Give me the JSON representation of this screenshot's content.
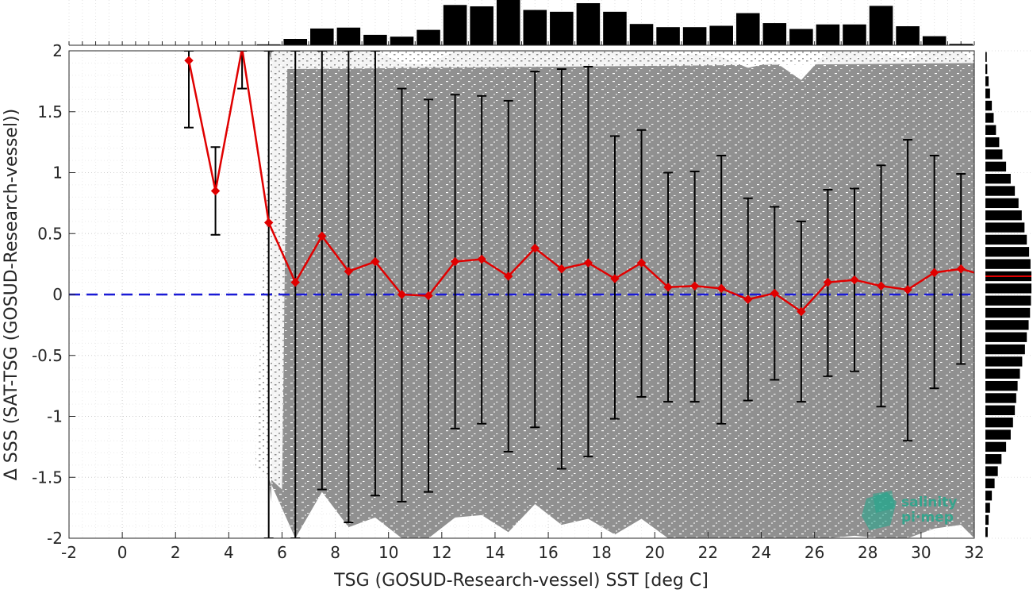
{
  "chart_data": {
    "type": "scatter",
    "xlabel": "TSG (GOSUD-Research-vessel) SST [deg C]",
    "ylabel": "Δ SSS (SAT-TSG (GOSUD-Research-vessel))",
    "xlim": [
      -2,
      32
    ],
    "ylim": [
      -2,
      2
    ],
    "x_ticks": [
      -2,
      0,
      2,
      4,
      6,
      8,
      10,
      12,
      14,
      16,
      18,
      20,
      22,
      24,
      26,
      28,
      30,
      32
    ],
    "y_ticks": [
      2,
      1.5,
      1,
      0.5,
      0,
      -0.5,
      -1,
      -1.5,
      -2
    ],
    "y_tick_labels": [
      "2",
      "1.5",
      "1",
      "0.5",
      "0",
      "-0.5",
      "-1",
      "-1.5",
      "-2"
    ],
    "grid": true,
    "reference_line": {
      "y": 0,
      "color": "#1a1ad6",
      "style": "dashed"
    },
    "scatter_color": "#808080",
    "binned_mean": {
      "color": "#e00000",
      "x": [
        2.5,
        3.5,
        4.5,
        5.5,
        6.5,
        7.5,
        8.5,
        9.5,
        10.5,
        11.5,
        12.5,
        13.5,
        14.5,
        15.5,
        16.5,
        17.5,
        18.5,
        19.5,
        20.5,
        21.5,
        22.5,
        23.5,
        24.5,
        25.5,
        26.5,
        27.5,
        28.5,
        29.5,
        30.5,
        31.5,
        32.5
      ],
      "y": [
        1.92,
        0.85,
        2.02,
        0.59,
        0.1,
        0.48,
        0.19,
        0.27,
        0.0,
        -0.01,
        0.27,
        0.29,
        0.15,
        0.38,
        0.21,
        0.26,
        0.13,
        0.26,
        0.06,
        0.07,
        0.05,
        -0.04,
        0.01,
        -0.14,
        0.1,
        0.12,
        0.07,
        0.04,
        0.18,
        0.21,
        0.15
      ],
      "err_low": [
        1.37,
        0.49,
        1.69,
        -2.0,
        -2.0,
        -1.6,
        -1.87,
        -1.65,
        -1.7,
        -1.62,
        -1.1,
        -1.06,
        -1.29,
        -1.09,
        -1.43,
        -1.33,
        -1.02,
        -0.84,
        -0.88,
        -0.88,
        -1.06,
        -0.87,
        -0.7,
        -0.88,
        -0.67,
        -0.63,
        -0.92,
        -1.2,
        -0.77,
        -0.57,
        null
      ],
      "err_high": [
        2.0,
        1.21,
        2.0,
        2.0,
        2.0,
        2.0,
        2.0,
        2.0,
        1.69,
        1.6,
        1.64,
        1.63,
        1.59,
        1.83,
        1.85,
        1.87,
        1.3,
        1.35,
        1.0,
        1.01,
        1.14,
        0.79,
        0.72,
        0.6,
        0.86,
        0.87,
        1.06,
        1.27,
        1.14,
        0.99,
        null
      ]
    },
    "top_histogram": {
      "x_center": [
        2.5,
        3.5,
        4.5,
        5.5,
        6.5,
        7.5,
        8.5,
        9.5,
        10.5,
        11.5,
        12.5,
        13.5,
        14.5,
        15.5,
        16.5,
        17.5,
        18.5,
        19.5,
        20.5,
        21.5,
        22.5,
        23.5,
        24.5,
        25.5,
        26.5,
        27.5,
        28.5,
        29.5,
        30.5,
        31.5
      ],
      "relative_count": [
        0,
        0,
        0,
        0.02,
        0.14,
        0.37,
        0.39,
        0.23,
        0.19,
        0.34,
        0.89,
        0.86,
        1.0,
        0.78,
        0.74,
        0.93,
        0.74,
        0.47,
        0.4,
        0.4,
        0.43,
        0.71,
        0.49,
        0.36,
        0.46,
        0.46,
        0.87,
        0.42,
        0.2,
        0.03
      ]
    },
    "right_histogram": {
      "y_center": [
        1.95,
        1.85,
        1.75,
        1.65,
        1.55,
        1.45,
        1.35,
        1.25,
        1.15,
        1.05,
        0.95,
        0.85,
        0.75,
        0.65,
        0.55,
        0.45,
        0.35,
        0.25,
        0.15,
        0.05,
        -0.05,
        -0.15,
        -0.25,
        -0.35,
        -0.45,
        -0.55,
        -0.65,
        -0.75,
        -0.85,
        -0.95,
        -1.05,
        -1.15,
        -1.25,
        -1.35,
        -1.45,
        -1.55,
        -1.65,
        -1.75,
        -1.85,
        -1.95
      ],
      "relative_count": [
        0.03,
        0.04,
        0.07,
        0.1,
        0.14,
        0.18,
        0.23,
        0.3,
        0.37,
        0.45,
        0.55,
        0.64,
        0.72,
        0.79,
        0.85,
        0.9,
        0.95,
        0.98,
        1.0,
        1.0,
        0.99,
        0.97,
        0.94,
        0.9,
        0.86,
        0.8,
        0.75,
        0.7,
        0.67,
        0.64,
        0.6,
        0.55,
        0.45,
        0.35,
        0.27,
        0.2,
        0.14,
        0.1,
        0.07,
        0.05
      ],
      "mean_line": {
        "y": 0.15,
        "color": "#e00000"
      }
    }
  },
  "logo": {
    "line1": "salinity",
    "line2": "pi·mep",
    "color": "#1fa88c"
  }
}
